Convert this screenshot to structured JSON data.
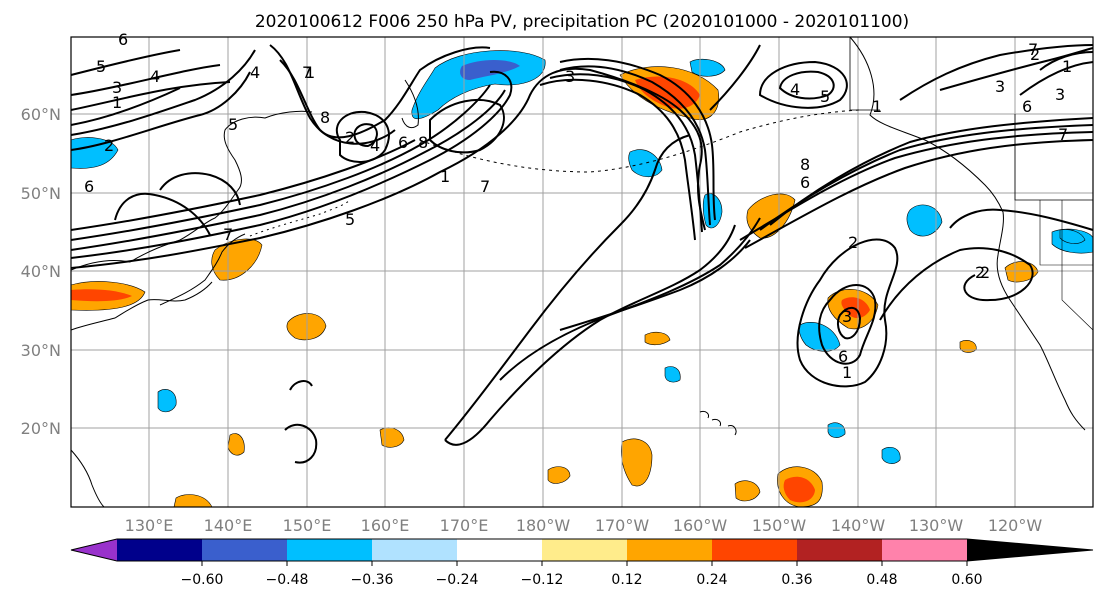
{
  "title": "2020100612 F006 250 hPa PV, precipitation PC (2020101000 - 2020101100)",
  "lat_labels": [
    "20°N",
    "30°N",
    "40°N",
    "50°N",
    "60°N"
  ],
  "lon_labels": [
    "130°E",
    "140°E",
    "150°E",
    "160°E",
    "170°E",
    "180°W",
    "170°W",
    "160°W",
    "150°W",
    "140°W",
    "130°W",
    "120°W"
  ],
  "colorbar": {
    "ticks": [
      "−0.60",
      "−0.48",
      "−0.36",
      "−0.24",
      "−0.12",
      "0.12",
      "0.24",
      "0.36",
      "0.48",
      "0.60"
    ],
    "colors": [
      "#9932CC",
      "#00008B",
      "#3A5FCD",
      "#00BFFF",
      "#B0E2FF",
      "#FFFFFF",
      "#FFEC8B",
      "#FFA500",
      "#FF4500",
      "#B22222",
      "#FF82AB"
    ]
  },
  "contour_labels": [
    "5",
    "3",
    "1",
    "4",
    "6",
    "2",
    "6",
    "7",
    "8",
    "2",
    "4",
    "6",
    "8",
    "7",
    "5",
    "1",
    "3",
    "4",
    "5",
    "1",
    "8",
    "6",
    "2",
    "3",
    "1",
    "2",
    "6",
    "7",
    "4",
    "3",
    "6",
    "5",
    "7",
    "1",
    "7",
    "3",
    "1",
    "2",
    "2"
  ]
}
